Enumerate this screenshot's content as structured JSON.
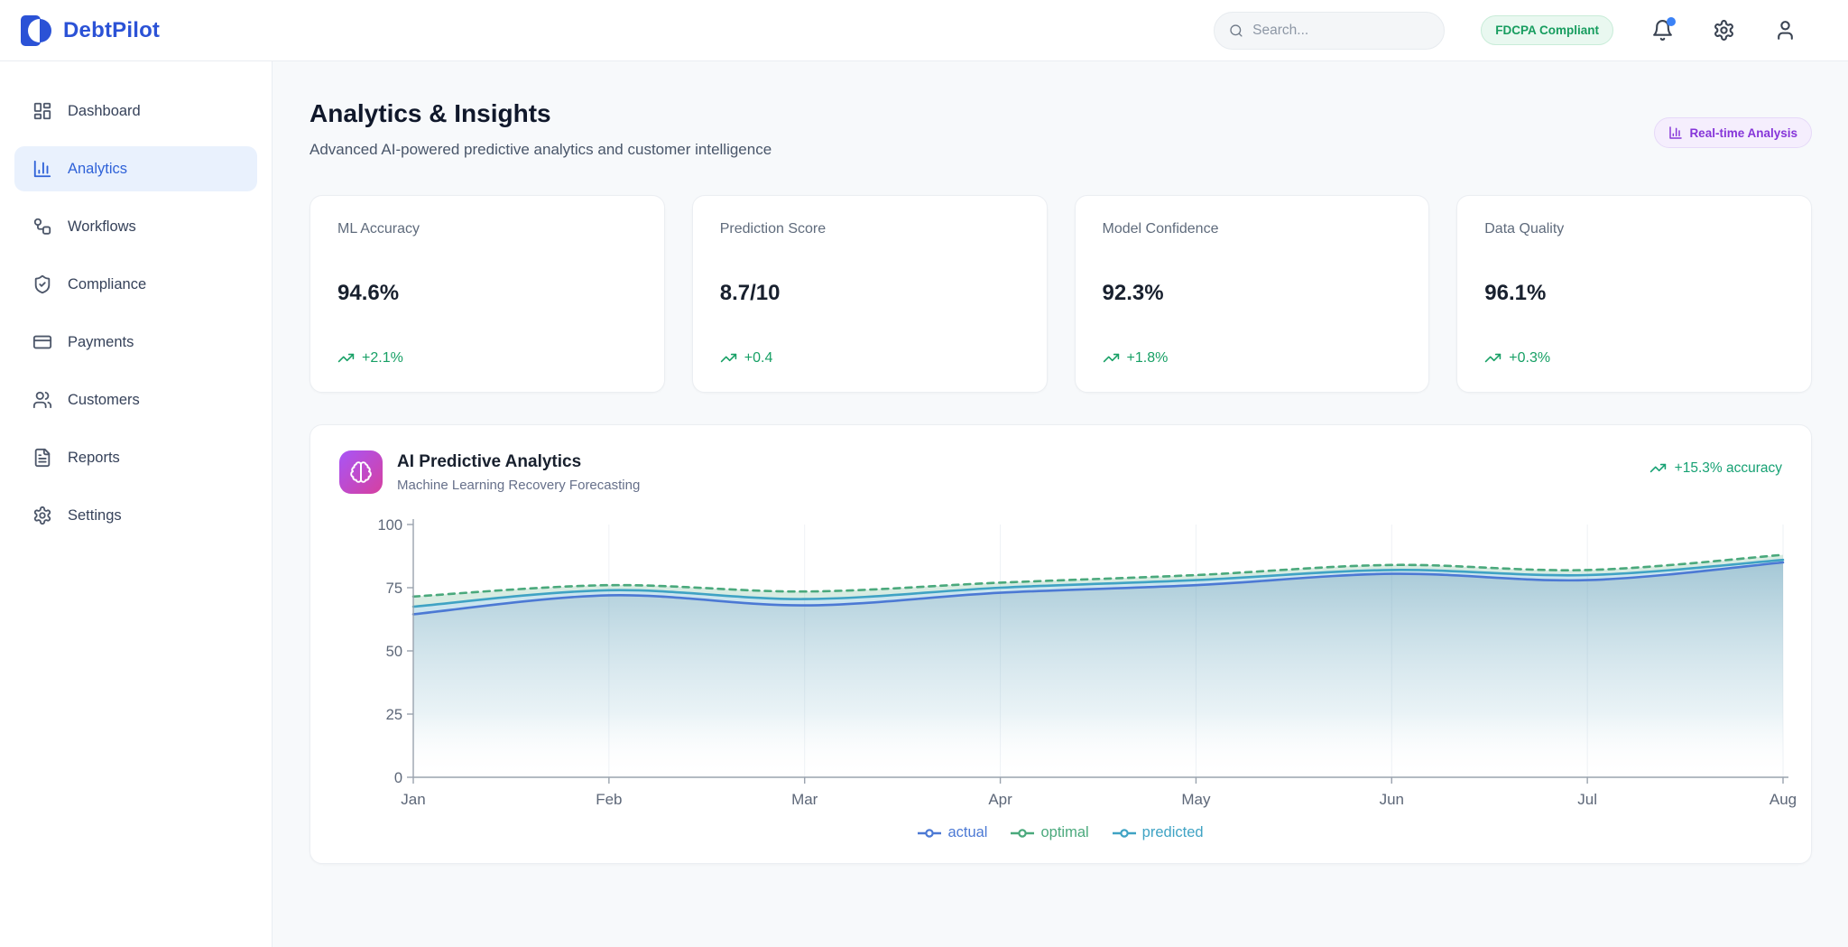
{
  "brand": {
    "name": "DebtPilot",
    "accent_color": "#2b52d6"
  },
  "header": {
    "search": {
      "placeholder": "Search...",
      "icon": "search-icon"
    },
    "compliance_badge": {
      "label": "FDCPA Compliant",
      "color": "#179d5f"
    },
    "icons": [
      "bell-icon",
      "gear-icon",
      "user-icon"
    ],
    "notification_dot_color": "#3b82f6"
  },
  "sidebar": {
    "items": [
      {
        "label": "Dashboard",
        "icon": "dashboard-icon",
        "active": false
      },
      {
        "label": "Analytics",
        "icon": "analytics-icon",
        "active": true
      },
      {
        "label": "Workflows",
        "icon": "workflow-icon",
        "active": false
      },
      {
        "label": "Compliance",
        "icon": "shield-check-icon",
        "active": false
      },
      {
        "label": "Payments",
        "icon": "credit-card-icon",
        "active": false
      },
      {
        "label": "Customers",
        "icon": "users-icon",
        "active": false
      },
      {
        "label": "Reports",
        "icon": "file-text-icon",
        "active": false
      },
      {
        "label": "Settings",
        "icon": "gear-icon",
        "active": false
      }
    ]
  },
  "page": {
    "title": "Analytics & Insights",
    "subtitle": "Advanced AI-powered predictive analytics and customer intelligence",
    "badge": {
      "label": "Real-time Analysis",
      "icon": "bar-chart-icon",
      "color": "#8636d9"
    }
  },
  "stats": [
    {
      "label": "ML Accuracy",
      "value": "94.6%",
      "delta": "+2.1%"
    },
    {
      "label": "Prediction Score",
      "value": "8.7/10",
      "delta": "+0.4"
    },
    {
      "label": "Model Confidence",
      "value": "92.3%",
      "delta": "+1.8%"
    },
    {
      "label": "Data Quality",
      "value": "96.1%",
      "delta": "+0.3%"
    }
  ],
  "trend_color": "#17a065",
  "chart_card": {
    "title": "AI Predictive Analytics",
    "subtitle": "Machine Learning Recovery Forecasting",
    "accuracy_badge": "+15.3% accuracy",
    "icon": "brain-icon"
  },
  "chart_data": {
    "type": "area",
    "title": "AI Predictive Analytics — Machine Learning Recovery Forecasting",
    "x": [
      "Jan",
      "Feb",
      "Mar",
      "Apr",
      "May",
      "Jun",
      "Jul",
      "Aug"
    ],
    "series": [
      {
        "name": "actual",
        "color": "#4c79d4",
        "style": "solid",
        "values": [
          64.5,
          72,
          68,
          73,
          76,
          80.5,
          78,
          85
        ]
      },
      {
        "name": "predicted",
        "color": "#3fa3c4",
        "style": "solid",
        "values": [
          67.5,
          74,
          70.5,
          75,
          78,
          82,
          80,
          86
        ]
      },
      {
        "name": "optimal",
        "color": "#4aa97c",
        "style": "dashed",
        "values": [
          71.5,
          76,
          73.5,
          77,
          80,
          84,
          82,
          88
        ]
      }
    ],
    "band_fills": {
      "under_actual_gradient_top": "rgba(74,144,173,0.5)",
      "under_actual_gradient_bottom": "rgba(255,255,255,0)",
      "actual_to_predicted": "rgba(63,163,196,0.28)",
      "predicted_to_optimal": "rgba(76,169,124,0.22)"
    },
    "xlabel": "",
    "ylabel": "",
    "ylim": [
      0,
      100
    ],
    "yticks": [
      0,
      25,
      50,
      75,
      100
    ],
    "grid": true,
    "legend_position": "bottom",
    "legend_order": [
      "actual",
      "optimal",
      "predicted"
    ]
  }
}
